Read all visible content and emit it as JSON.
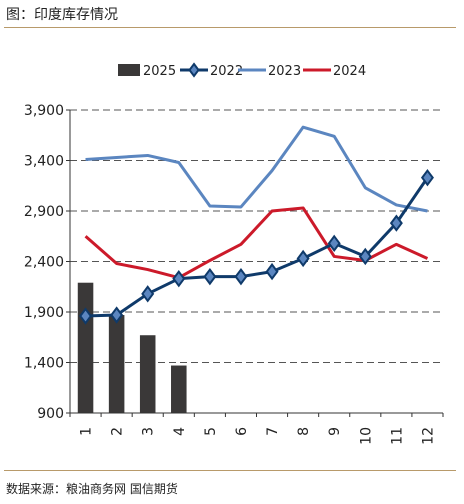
{
  "header": {
    "title": "图：印度库存情况"
  },
  "footer": {
    "source": "数据来源：粮油商务网 国信期货"
  },
  "chart_data": {
    "type": "bar+line",
    "categories": [
      "1",
      "2",
      "3",
      "4",
      "5",
      "6",
      "7",
      "8",
      "9",
      "10",
      "11",
      "12"
    ],
    "ylim": [
      900,
      3900
    ],
    "yticks": [
      900,
      1400,
      1900,
      2400,
      2900,
      3400,
      3900
    ],
    "ytick_labels": [
      "900",
      "1,400",
      "1,900",
      "2,400",
      "2,900",
      "3,400",
      "3,900"
    ],
    "grid": "horizontal-dashed",
    "legend_position": "top",
    "series": [
      {
        "name": "2025",
        "kind": "bar",
        "color": "#3a3838",
        "values": [
          2190,
          1870,
          1670,
          1370,
          null,
          null,
          null,
          null,
          null,
          null,
          null,
          null
        ]
      },
      {
        "name": "2022",
        "kind": "line-diamond",
        "color": "#0f3a6a",
        "values": [
          1860,
          1870,
          2080,
          2230,
          2250,
          2250,
          2300,
          2430,
          2580,
          2450,
          2780,
          3230
        ]
      },
      {
        "name": "2023",
        "kind": "line",
        "color": "#5b86c0",
        "values": [
          3410,
          3430,
          3450,
          3380,
          2950,
          2940,
          3300,
          3730,
          3640,
          3130,
          2960,
          2900
        ]
      },
      {
        "name": "2024",
        "kind": "line",
        "color": "#cc1a2a",
        "values": [
          2650,
          2380,
          2320,
          2240,
          2410,
          2570,
          2900,
          2930,
          2450,
          2410,
          2570,
          2430
        ]
      }
    ]
  }
}
